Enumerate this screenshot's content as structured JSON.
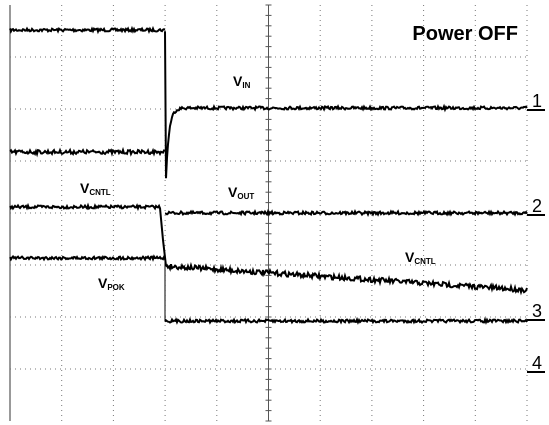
{
  "title": "Power OFF",
  "labels": [
    {
      "main": "V",
      "sub": "IN"
    },
    {
      "main": "V",
      "sub": "CNTL"
    },
    {
      "main": "V",
      "sub": "OUT"
    },
    {
      "main": "V",
      "sub": "CNTL"
    },
    {
      "main": "V",
      "sub": "POK"
    }
  ],
  "channels": [
    "1",
    "2",
    "3",
    "4"
  ]
}
